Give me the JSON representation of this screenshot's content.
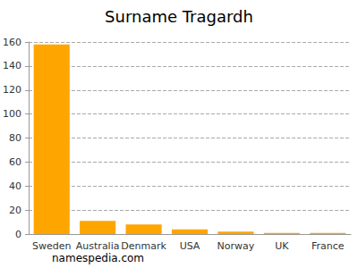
{
  "chart_data": {
    "type": "bar",
    "title": "Surname Tragardh",
    "categories": [
      "Sweden",
      "Australia",
      "Denmark",
      "USA",
      "Norway",
      "UK",
      "France"
    ],
    "values": [
      158,
      11,
      8,
      4,
      2,
      1,
      1
    ],
    "color": "#ffa500",
    "ylim": [
      0,
      160
    ],
    "yticks": [
      0,
      20,
      40,
      60,
      80,
      100,
      120,
      140,
      160
    ],
    "grid": true,
    "annotation": "namespedia.com"
  }
}
